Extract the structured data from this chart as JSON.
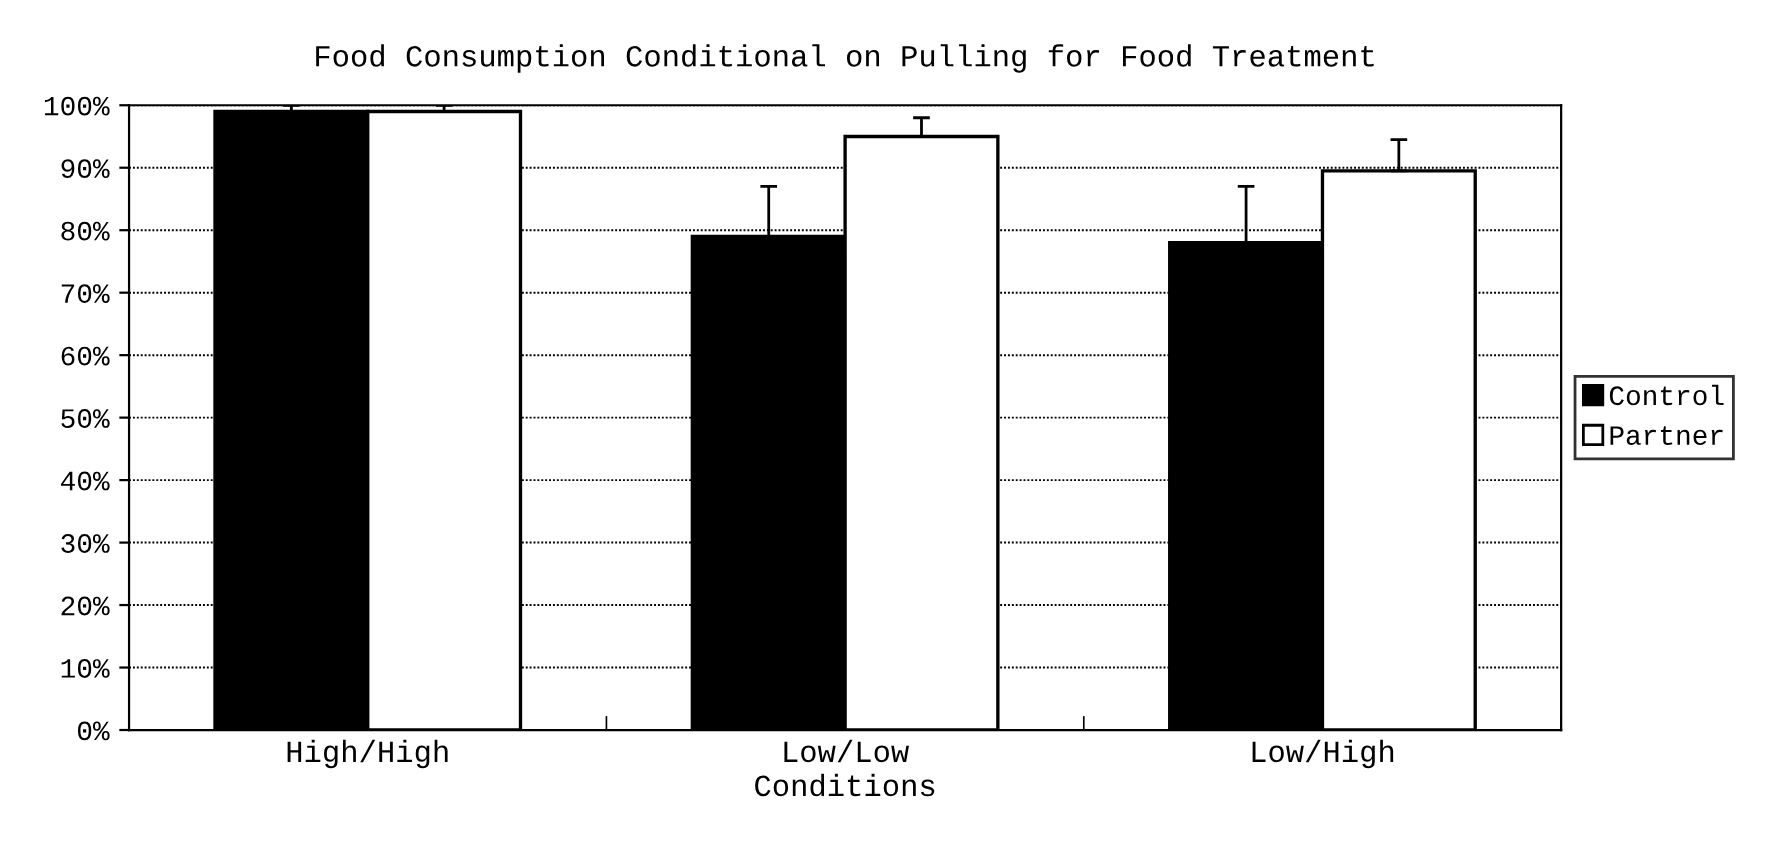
{
  "chart_data": {
    "type": "bar",
    "title": "Food Consumption Conditional on Pulling for Food Treatment",
    "xlabel": "Conditions",
    "categories": [
      "High/High",
      "Low/Low",
      "Low/High"
    ],
    "series": [
      {
        "name": "Control",
        "color": "#000000",
        "values": [
          99,
          79,
          78
        ],
        "errors": [
          1,
          8,
          9
        ]
      },
      {
        "name": "Partner",
        "color": "#ffffff",
        "values": [
          99,
          95,
          89.5
        ],
        "errors": [
          1,
          3,
          5
        ]
      }
    ],
    "ylim": [
      0,
      100
    ],
    "yticks": [
      {
        "value": 0,
        "label": "0%"
      },
      {
        "value": 10,
        "label": "10%"
      },
      {
        "value": 20,
        "label": "20%"
      },
      {
        "value": 30,
        "label": "30%"
      },
      {
        "value": 40,
        "label": "40%"
      },
      {
        "value": 50,
        "label": "50%"
      },
      {
        "value": 60,
        "label": "60%"
      },
      {
        "value": 70,
        "label": "70%"
      },
      {
        "value": 80,
        "label": "80%"
      },
      {
        "value": 90,
        "label": "90%"
      },
      {
        "value": 100,
        "label": "100%"
      }
    ],
    "grid": "y",
    "legend": "right"
  }
}
